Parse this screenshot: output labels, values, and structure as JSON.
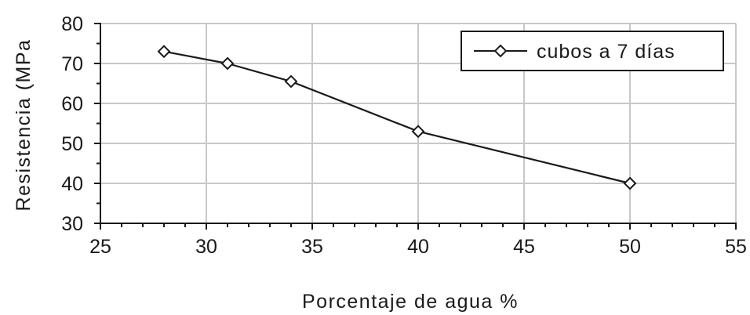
{
  "chart_data": {
    "type": "line",
    "title": "",
    "xlabel": "Porcentaje de agua %",
    "ylabel": "Resistencia (MPa",
    "xlim": [
      25,
      55
    ],
    "ylim": [
      30,
      80
    ],
    "xticks": [
      25,
      30,
      35,
      40,
      45,
      50,
      55
    ],
    "yticks": [
      30,
      40,
      50,
      60,
      70,
      80
    ],
    "grid": true,
    "legend_position": "top-right",
    "colors": {
      "line": "#1a1a1a",
      "grid": "#c8c8c8",
      "axis": "#1a1a1a",
      "marker_fill": "#ffffff"
    },
    "series": [
      {
        "name": "cubos a 7 días",
        "marker": "diamond",
        "x": [
          28,
          31,
          34,
          40,
          50
        ],
        "y": [
          73,
          70,
          65.5,
          53,
          40
        ]
      }
    ]
  }
}
